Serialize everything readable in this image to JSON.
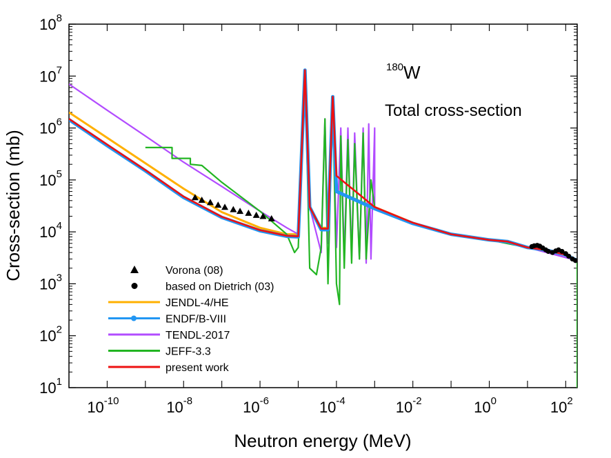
{
  "chart_data": {
    "type": "line",
    "xlabel": "Neutron energy (MeV)",
    "ylabel": "Cross-section (mb)",
    "x_scale": "log",
    "y_scale": "log",
    "xlim": [
      1e-11,
      200
    ],
    "ylim": [
      10,
      100000000.0
    ],
    "x_ticks": [
      {
        "value": 1e-10,
        "base": "10",
        "exp": "-10"
      },
      {
        "value": 1e-08,
        "base": "10",
        "exp": "-8"
      },
      {
        "value": 1e-06,
        "base": "10",
        "exp": "-6"
      },
      {
        "value": 0.0001,
        "base": "10",
        "exp": "-4"
      },
      {
        "value": 0.01,
        "base": "10",
        "exp": "-2"
      },
      {
        "value": 1,
        "base": "10",
        "exp": "0"
      },
      {
        "value": 100,
        "base": "10",
        "exp": "2"
      }
    ],
    "y_ticks": [
      {
        "value": 10,
        "base": "10",
        "exp": "1"
      },
      {
        "value": 100,
        "base": "10",
        "exp": "2"
      },
      {
        "value": 1000,
        "base": "10",
        "exp": "3"
      },
      {
        "value": 10000,
        "base": "10",
        "exp": "4"
      },
      {
        "value": 100000,
        "base": "10",
        "exp": "5"
      },
      {
        "value": 1000000,
        "base": "10",
        "exp": "6"
      },
      {
        "value": 10000000,
        "base": "10",
        "exp": "7"
      },
      {
        "value": 100000000,
        "base": "10",
        "exp": "8"
      }
    ],
    "annotations": {
      "nuclide_mass": "180",
      "nuclide_symbol": "W",
      "quantity": "Total cross-section"
    },
    "legend_position": "bottom-left",
    "series": [
      {
        "name": "Vorona (08)",
        "kind": "scatter",
        "marker": "triangle",
        "color": "#000000",
        "points": [
          [
            2e-08,
            46000
          ],
          [
            3e-08,
            41000
          ],
          [
            5e-08,
            37000
          ],
          [
            8e-08,
            33000
          ],
          [
            1.2e-07,
            30000
          ],
          [
            2e-07,
            27000
          ],
          [
            3e-07,
            25000
          ],
          [
            5e-07,
            23000
          ],
          [
            8e-07,
            21000
          ],
          [
            1.2e-06,
            20000
          ],
          [
            2e-06,
            18000
          ]
        ]
      },
      {
        "name": "based on Dietrich (03)",
        "kind": "scatter",
        "marker": "circle",
        "color": "#000000",
        "points": [
          [
            13,
            5200
          ],
          [
            15,
            5400
          ],
          [
            18,
            5500
          ],
          [
            21,
            5300
          ],
          [
            25,
            4900
          ],
          [
            30,
            4500
          ],
          [
            35,
            4200
          ],
          [
            45,
            4000
          ],
          [
            55,
            4300
          ],
          [
            65,
            4500
          ],
          [
            80,
            4200
          ],
          [
            100,
            3800
          ],
          [
            120,
            3400
          ],
          [
            150,
            3000
          ],
          [
            180,
            2800
          ]
        ]
      },
      {
        "name": "JENDL-4/HE",
        "kind": "line",
        "color": "#ffb000",
        "points": [
          [
            1e-11,
            2000000
          ],
          [
            1e-10,
            650000
          ],
          [
            1e-09,
            210000
          ],
          [
            1e-08,
            68000
          ],
          [
            1e-07,
            24000
          ],
          [
            1e-06,
            12000
          ],
          [
            5e-06,
            9000
          ],
          [
            1e-05,
            9000
          ],
          [
            1.5e-05,
            13000000
          ],
          [
            2e-05,
            30000
          ],
          [
            4e-05,
            12000
          ],
          [
            6e-05,
            12000
          ],
          [
            8e-05,
            4000000
          ],
          [
            0.0001,
            60000
          ],
          [
            0.001,
            30000
          ],
          [
            0.01,
            15000
          ],
          [
            0.1,
            9000
          ],
          [
            1,
            7000
          ],
          [
            3,
            6500
          ],
          [
            10,
            5000
          ],
          [
            30,
            4500
          ],
          [
            100,
            3600
          ],
          [
            200,
            2800
          ]
        ]
      },
      {
        "name": "ENDF/B-VIII",
        "kind": "line",
        "color": "#2196f3",
        "points": [
          [
            1e-11,
            1450000
          ],
          [
            1e-10,
            460000
          ],
          [
            1e-09,
            150000
          ],
          [
            1e-08,
            46000
          ],
          [
            1e-07,
            19000
          ],
          [
            1e-06,
            10500
          ],
          [
            5e-06,
            8200
          ],
          [
            1e-05,
            8000
          ],
          [
            1.5e-05,
            13000000
          ],
          [
            2e-05,
            30000
          ],
          [
            4e-05,
            11000
          ],
          [
            6e-05,
            11000
          ],
          [
            8e-05,
            4000000
          ],
          [
            0.0001,
            60000
          ],
          [
            0.001,
            28000
          ],
          [
            0.01,
            14500
          ],
          [
            0.1,
            9000
          ],
          [
            1,
            7000
          ],
          [
            3,
            6500
          ],
          [
            10,
            5000
          ],
          [
            30,
            4500
          ],
          [
            100,
            3600
          ],
          [
            200,
            2800
          ]
        ]
      },
      {
        "name": "TENDL-2017",
        "kind": "line",
        "color": "#b24cff",
        "points": [
          [
            1e-11,
            7000000
          ],
          [
            1e-10,
            2200000
          ],
          [
            1e-09,
            700000
          ],
          [
            1e-08,
            220000
          ],
          [
            1e-07,
            75000
          ],
          [
            1e-06,
            25000
          ],
          [
            5e-06,
            12000
          ],
          [
            1e-05,
            9000
          ],
          [
            1.5e-05,
            13000000
          ],
          [
            2e-05,
            30000
          ],
          [
            4e-05,
            4000
          ],
          [
            5e-05,
            1500000
          ],
          [
            6e-05,
            6000
          ],
          [
            8e-05,
            4000000
          ],
          [
            0.0001,
            5000
          ],
          [
            0.00013,
            1000000
          ],
          [
            0.00016,
            3000
          ],
          [
            0.0002,
            1000000
          ],
          [
            0.00025,
            3000
          ],
          [
            0.0003,
            800000
          ],
          [
            0.0004,
            3000
          ],
          [
            0.0005,
            1000000
          ],
          [
            0.0006,
            2500
          ],
          [
            0.0007,
            1200000
          ],
          [
            0.0008,
            3000
          ],
          [
            0.001,
            1000000
          ],
          [
            0.001,
            30000
          ],
          [
            0.01,
            15000
          ],
          [
            0.1,
            9000
          ],
          [
            1,
            7000
          ],
          [
            10,
            5000
          ],
          [
            200,
            2800
          ]
        ]
      },
      {
        "name": "JEFF-3.3",
        "kind": "line",
        "color": "#22b522",
        "points": [
          [
            1e-09,
            420000
          ],
          [
            5e-09,
            420000
          ],
          [
            5e-09,
            260000
          ],
          [
            1.5e-08,
            260000
          ],
          [
            1.5e-08,
            200000
          ],
          [
            3e-08,
            190000
          ],
          [
            1e-07,
            90000
          ],
          [
            1e-06,
            25000
          ],
          [
            5e-06,
            9000
          ],
          [
            8e-06,
            4000
          ],
          [
            1e-05,
            5000
          ],
          [
            1.5e-05,
            13000000
          ],
          [
            2e-05,
            2000
          ],
          [
            3e-05,
            1500
          ],
          [
            4e-05,
            5000
          ],
          [
            5e-05,
            1500000
          ],
          [
            6e-05,
            1000
          ],
          [
            8e-05,
            4000000
          ],
          [
            0.0001,
            1000
          ],
          [
            0.00012,
            400
          ],
          [
            0.00013,
            700000
          ],
          [
            0.00016,
            2000
          ],
          [
            0.0002,
            600000
          ],
          [
            0.00025,
            2500
          ],
          [
            0.0003,
            500000
          ],
          [
            0.0004,
            3000
          ],
          [
            0.0005,
            800000
          ],
          [
            0.0006,
            3000
          ],
          [
            0.0008,
            100000
          ],
          [
            0.001,
            30000
          ],
          [
            0.01,
            15000
          ],
          [
            0.1,
            9000
          ],
          [
            1,
            7000
          ],
          [
            10,
            5000
          ],
          [
            100,
            3600
          ],
          [
            200,
            2800
          ],
          [
            200,
            10
          ]
        ]
      },
      {
        "name": "present work",
        "kind": "line",
        "color": "#ee1111",
        "points": [
          [
            1e-11,
            1500000
          ],
          [
            1e-10,
            480000
          ],
          [
            1e-09,
            155000
          ],
          [
            1e-08,
            48000
          ],
          [
            1e-07,
            19500
          ],
          [
            1e-06,
            10800
          ],
          [
            5e-06,
            8400
          ],
          [
            1e-05,
            8200
          ],
          [
            1.5e-05,
            13000000
          ],
          [
            2e-05,
            30000
          ],
          [
            4e-05,
            11500
          ],
          [
            6e-05,
            11500
          ],
          [
            8e-05,
            4000000
          ],
          [
            0.0001,
            120000
          ],
          [
            0.001,
            30000
          ],
          [
            0.01,
            15000
          ],
          [
            0.1,
            9000
          ],
          [
            1,
            7000
          ],
          [
            3,
            6500
          ],
          [
            10,
            5000
          ],
          [
            30,
            4500
          ],
          [
            100,
            3600
          ],
          [
            200,
            2800
          ]
        ]
      }
    ]
  }
}
